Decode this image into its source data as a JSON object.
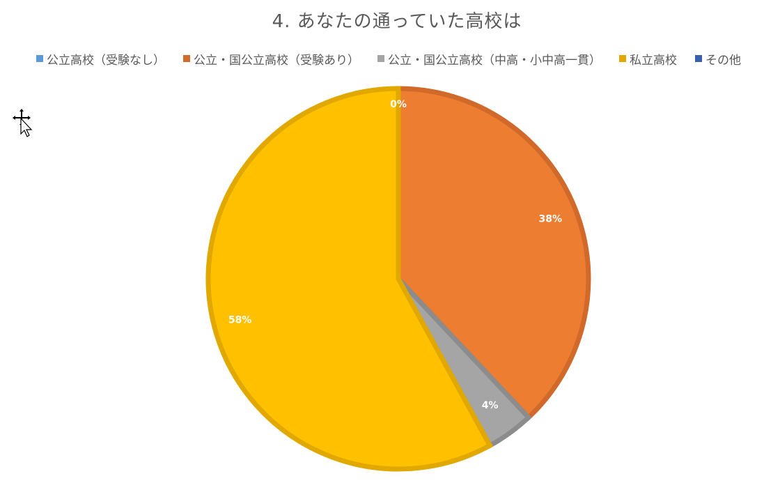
{
  "chart_data": {
    "type": "pie",
    "title": "4. あなたの通っていた高校は",
    "legend_position": "top",
    "slices": [
      {
        "name": "公立高校（受験なし）",
        "value": 0,
        "label": "0%",
        "color": "#5B9BD5",
        "border": "#4A89C2"
      },
      {
        "name": "公立・国公立高校（受験あり）",
        "value": 38,
        "label": "38%",
        "color": "#ED7D31",
        "border": "#D0692A"
      },
      {
        "name": "公立・国公立高校（中高・小中高一貫）",
        "value": 4,
        "label": "4%",
        "color": "#A5A5A5",
        "border": "#8C8C8C"
      },
      {
        "name": "私立高校",
        "value": 58,
        "label": "58%",
        "color": "#FFC000",
        "border": "#E0A800"
      },
      {
        "name": "その他",
        "value": 0,
        "label": "",
        "color": "#4472C4",
        "border": "#3A62AA"
      }
    ],
    "legend_colors": [
      "#5B9BD5",
      "#D46A2B",
      "#A5A5A5",
      "#E0A800",
      "#3A5FAF"
    ]
  },
  "colors": {
    "text": "#595959",
    "label": "#FFFFFF",
    "background": "#FFFFFF"
  },
  "icons": {
    "cursor": "move-cursor-icon"
  }
}
